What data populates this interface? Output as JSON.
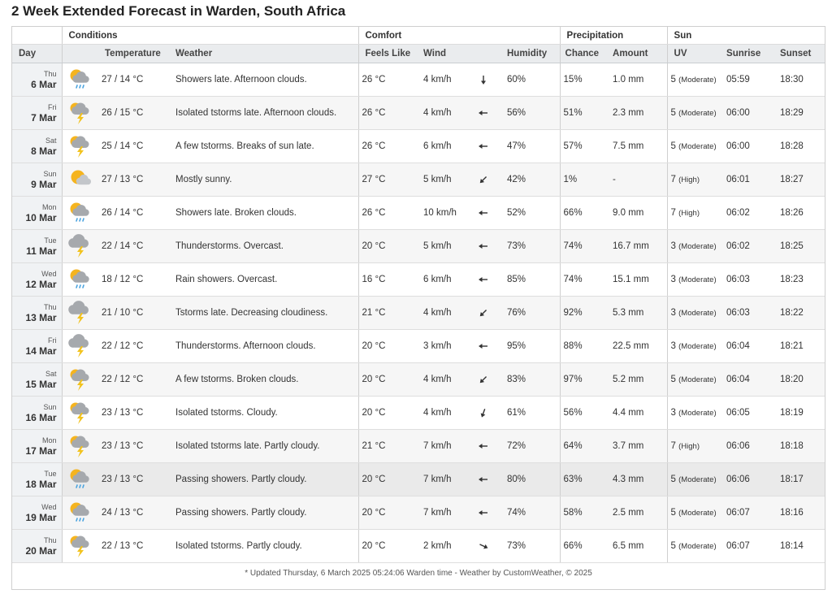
{
  "title": "2 Week Extended Forecast in Warden, South Africa",
  "groups": {
    "conditions": "Conditions",
    "comfort": "Comfort",
    "precipitation": "Precipitation",
    "sun": "Sun"
  },
  "columns": {
    "day": "Day",
    "temperature": "Temperature",
    "weather": "Weather",
    "feels_like": "Feels Like",
    "wind": "Wind",
    "humidity": "Humidity",
    "chance": "Chance",
    "amount": "Amount",
    "uv": "UV",
    "sunrise": "Sunrise",
    "sunset": "Sunset"
  },
  "rows": [
    {
      "dow": "Thu",
      "date": "6 Mar",
      "icon": "showers-partly-cloudy-icon",
      "temp": "27 / 14 °C",
      "weather": "Showers late. Afternoon clouds.",
      "feels": "26 °C",
      "wind": "4 km/h",
      "wind_dir": "down-arrow-icon",
      "humidity": "60%",
      "chance": "15%",
      "amount": "1.0 mm",
      "uv": "5",
      "uv_label": "(Moderate)",
      "sunrise": "05:59",
      "sunset": "18:30"
    },
    {
      "dow": "Fri",
      "date": "7 Mar",
      "icon": "thunderstorm-sun-icon",
      "temp": "26 / 15 °C",
      "weather": "Isolated tstorms late. Afternoon clouds.",
      "feels": "26 °C",
      "wind": "4 km/h",
      "wind_dir": "left-arrow-icon",
      "humidity": "56%",
      "chance": "51%",
      "amount": "2.3 mm",
      "uv": "5",
      "uv_label": "(Moderate)",
      "sunrise": "06:00",
      "sunset": "18:29"
    },
    {
      "dow": "Sat",
      "date": "8 Mar",
      "icon": "thunderstorm-sun-icon",
      "temp": "25 / 14 °C",
      "weather": "A few tstorms. Breaks of sun late.",
      "feels": "26 °C",
      "wind": "6 km/h",
      "wind_dir": "left-arrow-icon",
      "humidity": "47%",
      "chance": "57%",
      "amount": "7.5 mm",
      "uv": "5",
      "uv_label": "(Moderate)",
      "sunrise": "06:00",
      "sunset": "18:28"
    },
    {
      "dow": "Sun",
      "date": "9 Mar",
      "icon": "mostly-sunny-icon",
      "temp": "27 / 13 °C",
      "weather": "Mostly sunny.",
      "feels": "27 °C",
      "wind": "5 km/h",
      "wind_dir": "down-left-arrow-icon",
      "humidity": "42%",
      "chance": "1%",
      "amount": "-",
      "uv": "7",
      "uv_label": "(High)",
      "sunrise": "06:01",
      "sunset": "18:27"
    },
    {
      "dow": "Mon",
      "date": "10 Mar",
      "icon": "showers-partly-cloudy-icon",
      "temp": "26 / 14 °C",
      "weather": "Showers late. Broken clouds.",
      "feels": "26 °C",
      "wind": "10 km/h",
      "wind_dir": "left-arrow-icon",
      "humidity": "52%",
      "chance": "66%",
      "amount": "9.0 mm",
      "uv": "7",
      "uv_label": "(High)",
      "sunrise": "06:02",
      "sunset": "18:26"
    },
    {
      "dow": "Tue",
      "date": "11 Mar",
      "icon": "thunderstorm-cloud-icon",
      "temp": "22 / 14 °C",
      "weather": "Thunderstorms. Overcast.",
      "feels": "20 °C",
      "wind": "5 km/h",
      "wind_dir": "left-arrow-icon",
      "humidity": "73%",
      "chance": "74%",
      "amount": "16.7 mm",
      "uv": "3",
      "uv_label": "(Moderate)",
      "sunrise": "06:02",
      "sunset": "18:25"
    },
    {
      "dow": "Wed",
      "date": "12 Mar",
      "icon": "showers-partly-cloudy-icon",
      "temp": "18 / 12 °C",
      "weather": "Rain showers. Overcast.",
      "feels": "16 °C",
      "wind": "6 km/h",
      "wind_dir": "left-arrow-icon",
      "humidity": "85%",
      "chance": "74%",
      "amount": "15.1 mm",
      "uv": "3",
      "uv_label": "(Moderate)",
      "sunrise": "06:03",
      "sunset": "18:23"
    },
    {
      "dow": "Thu",
      "date": "13 Mar",
      "icon": "thunderstorm-cloud-icon",
      "temp": "21 / 10 °C",
      "weather": "Tstorms late. Decreasing cloudiness.",
      "feels": "21 °C",
      "wind": "4 km/h",
      "wind_dir": "down-left-arrow-icon",
      "humidity": "76%",
      "chance": "92%",
      "amount": "5.3 mm",
      "uv": "3",
      "uv_label": "(Moderate)",
      "sunrise": "06:03",
      "sunset": "18:22"
    },
    {
      "dow": "Fri",
      "date": "14 Mar",
      "icon": "thunderstorm-cloud-icon",
      "temp": "22 / 12 °C",
      "weather": "Thunderstorms. Afternoon clouds.",
      "feels": "20 °C",
      "wind": "3 km/h",
      "wind_dir": "left-arrow-icon",
      "humidity": "95%",
      "chance": "88%",
      "amount": "22.5 mm",
      "uv": "3",
      "uv_label": "(Moderate)",
      "sunrise": "06:04",
      "sunset": "18:21"
    },
    {
      "dow": "Sat",
      "date": "15 Mar",
      "icon": "thunderstorm-sun-icon",
      "temp": "22 / 12 °C",
      "weather": "A few tstorms. Broken clouds.",
      "feels": "20 °C",
      "wind": "4 km/h",
      "wind_dir": "down-left-arrow-icon",
      "humidity": "83%",
      "chance": "97%",
      "amount": "5.2 mm",
      "uv": "5",
      "uv_label": "(Moderate)",
      "sunrise": "06:04",
      "sunset": "18:20"
    },
    {
      "dow": "Sun",
      "date": "16 Mar",
      "icon": "thunderstorm-sun-icon",
      "temp": "23 / 13 °C",
      "weather": "Isolated tstorms. Cloudy.",
      "feels": "20 °C",
      "wind": "4 km/h",
      "wind_dir": "down-slight-left-arrow-icon",
      "humidity": "61%",
      "chance": "56%",
      "amount": "4.4 mm",
      "uv": "3",
      "uv_label": "(Moderate)",
      "sunrise": "06:05",
      "sunset": "18:19"
    },
    {
      "dow": "Mon",
      "date": "17 Mar",
      "icon": "thunderstorm-sun-icon",
      "temp": "23 / 13 °C",
      "weather": "Isolated tstorms late. Partly cloudy.",
      "feels": "21 °C",
      "wind": "7 km/h",
      "wind_dir": "left-arrow-icon",
      "humidity": "72%",
      "chance": "64%",
      "amount": "3.7 mm",
      "uv": "7",
      "uv_label": "(High)",
      "sunrise": "06:06",
      "sunset": "18:18"
    },
    {
      "dow": "Tue",
      "date": "18 Mar",
      "icon": "showers-partly-cloudy-icon",
      "temp": "23 / 13 °C",
      "weather": "Passing showers. Partly cloudy.",
      "feels": "20 °C",
      "wind": "7 km/h",
      "wind_dir": "left-arrow-icon",
      "humidity": "80%",
      "chance": "63%",
      "amount": "4.3 mm",
      "uv": "5",
      "uv_label": "(Moderate)",
      "sunrise": "06:06",
      "sunset": "18:17"
    },
    {
      "dow": "Wed",
      "date": "19 Mar",
      "icon": "showers-partly-cloudy-icon",
      "temp": "24 / 13 °C",
      "weather": "Passing showers. Partly cloudy.",
      "feels": "20 °C",
      "wind": "7 km/h",
      "wind_dir": "left-arrow-icon",
      "humidity": "74%",
      "chance": "58%",
      "amount": "2.5 mm",
      "uv": "5",
      "uv_label": "(Moderate)",
      "sunrise": "06:07",
      "sunset": "18:16"
    },
    {
      "dow": "Thu",
      "date": "20 Mar",
      "icon": "thunderstorm-sun-icon",
      "temp": "22 / 13 °C",
      "weather": "Isolated tstorms. Partly cloudy.",
      "feels": "20 °C",
      "wind": "2 km/h",
      "wind_dir": "down-right-arrow-icon",
      "humidity": "73%",
      "chance": "66%",
      "amount": "6.5 mm",
      "uv": "5",
      "uv_label": "(Moderate)",
      "sunrise": "06:07",
      "sunset": "18:14"
    }
  ],
  "highlight_row": 12,
  "footer": "* Updated Thursday, 6 March 2025 05:24:06 Warden time - Weather by CustomWeather, © 2025",
  "colors": {
    "sun": "#f5b41f",
    "cloud": "#a6a9ad",
    "bolt": "#f2c21b",
    "rain": "#4aa3df"
  }
}
